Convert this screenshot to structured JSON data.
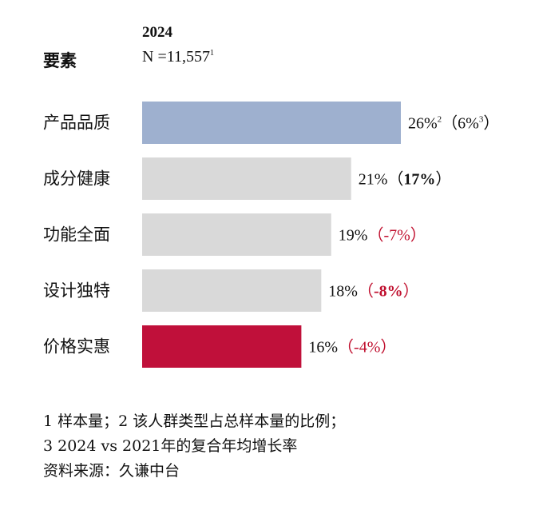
{
  "header": {
    "category_label": "要素",
    "year": "2024",
    "sample_prefix": "N =11,557",
    "sample_sup": "1"
  },
  "chart_data": {
    "type": "bar",
    "orientation": "horizontal",
    "categories": [
      "产品品质",
      "成分健康",
      "功能全面",
      "设计独特",
      "价格实惠"
    ],
    "values": [
      26,
      21,
      19,
      18,
      16
    ],
    "value_suffix": "%",
    "value_label_sup": [
      "2",
      "",
      "",
      "",
      ""
    ],
    "growth_labels": [
      "6%",
      "17%",
      "-7%",
      "-8%",
      "-4%"
    ],
    "growth_sup": [
      "3",
      "",
      "",
      "",
      ""
    ],
    "growth_bold": [
      false,
      true,
      false,
      true,
      false
    ],
    "growth_colors": [
      "#111111",
      "#111111",
      "#c0102f",
      "#c0102f",
      "#c0102f"
    ],
    "bar_colors": [
      "#9eb0cf",
      "#d9d9d9",
      "#d9d9d9",
      "#d9d9d9",
      "#c0103a"
    ],
    "value_max": 26,
    "title": "",
    "xlabel": "",
    "ylabel": "",
    "grid": false,
    "legend": "none"
  },
  "footnotes": [
    "1 样本量；2 该人群类型占总样本量的比例；",
    "3 2024 vs 2021年的复合年均增长率",
    "资料来源：久谦中台"
  ]
}
